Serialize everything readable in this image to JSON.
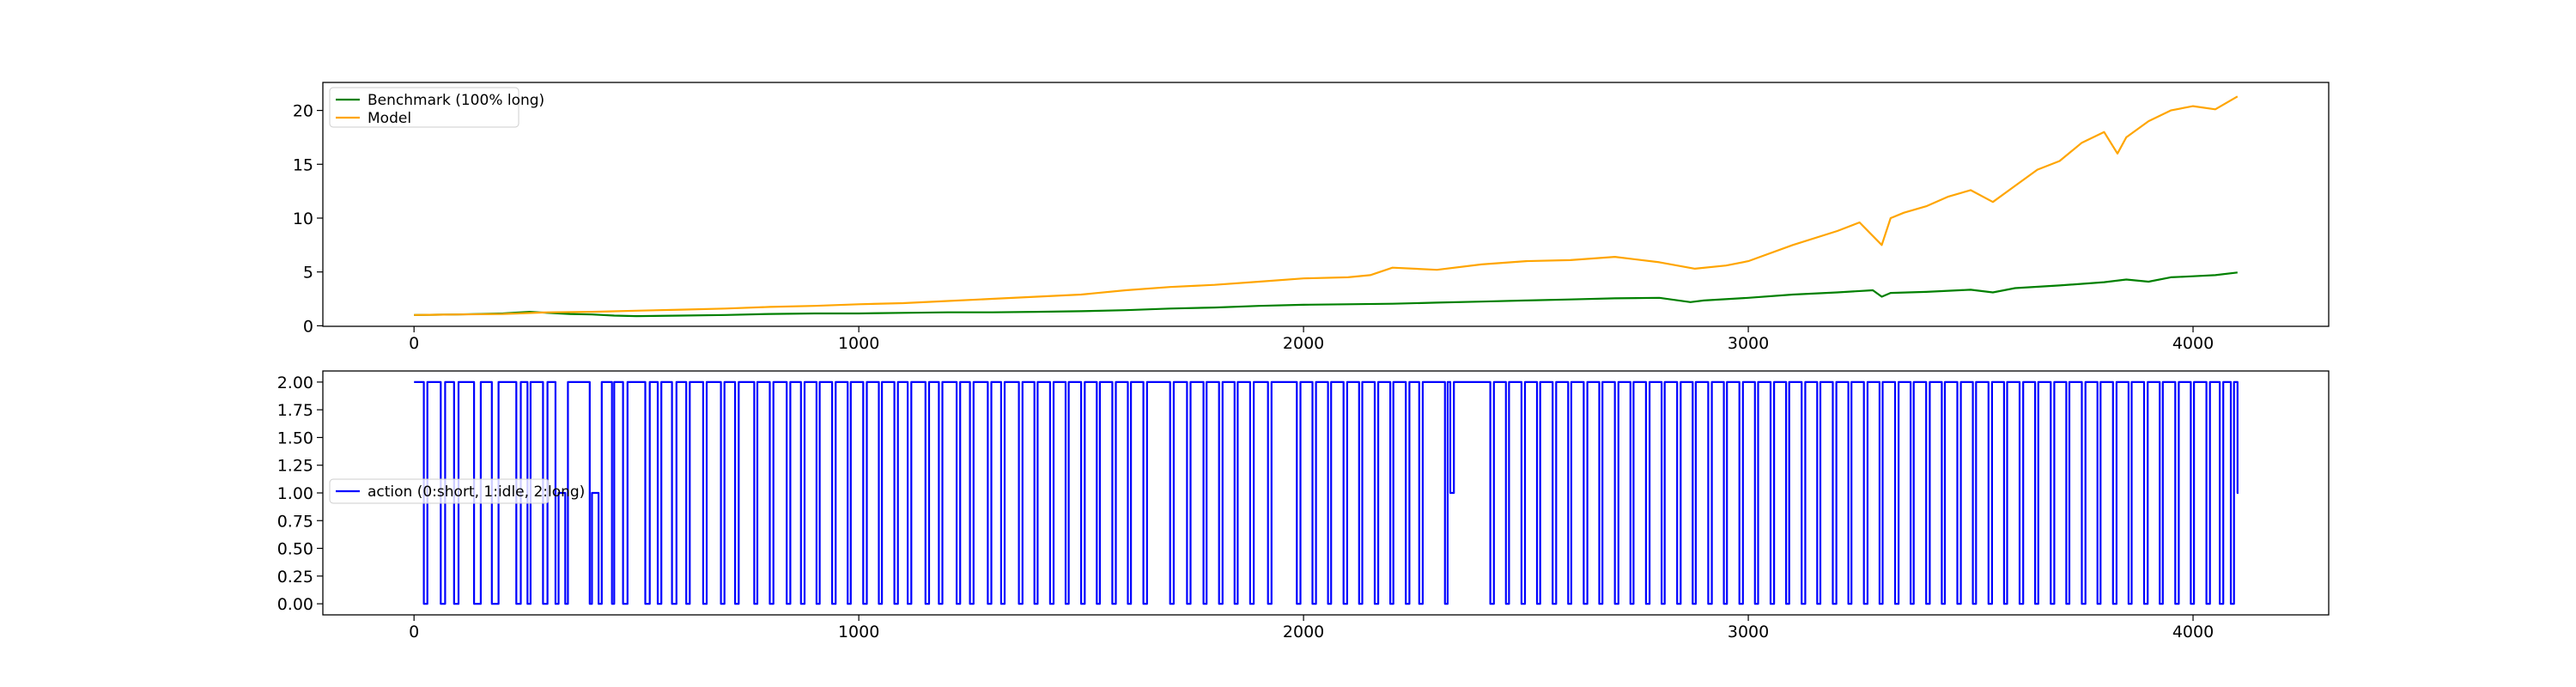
{
  "chart_data": [
    {
      "type": "line",
      "title": "",
      "xlabel": "",
      "ylabel": "",
      "xlim": [
        -205,
        4305
      ],
      "ylim": [
        -0.05,
        22.6
      ],
      "xticks": [
        0,
        1000,
        2000,
        3000,
        4000
      ],
      "xtick_labels": [
        "0",
        "1000",
        "2000",
        "3000",
        "4000"
      ],
      "yticks": [
        0,
        5,
        10,
        15,
        20
      ],
      "ytick_labels": [
        "0",
        "5",
        "10",
        "15",
        "20"
      ],
      "grid": false,
      "legend_position": "upper-left",
      "legend": [
        "Benchmark (100% long)",
        "Model"
      ],
      "series": [
        {
          "name": "Benchmark (100% long)",
          "color": "#008000",
          "x": [
            0,
            100,
            200,
            260,
            300,
            350,
            400,
            450,
            500,
            600,
            700,
            800,
            900,
            1000,
            1100,
            1200,
            1300,
            1400,
            1500,
            1600,
            1700,
            1800,
            1900,
            2000,
            2100,
            2200,
            2300,
            2400,
            2500,
            2600,
            2700,
            2800,
            2870,
            2900,
            3000,
            3100,
            3200,
            3280,
            3300,
            3320,
            3400,
            3500,
            3550,
            3600,
            3700,
            3800,
            3850,
            3900,
            3950,
            4000,
            4050,
            4100
          ],
          "y": [
            1.0,
            1.05,
            1.15,
            1.3,
            1.2,
            1.1,
            1.05,
            0.95,
            0.9,
            0.95,
            1.0,
            1.1,
            1.15,
            1.15,
            1.2,
            1.25,
            1.25,
            1.3,
            1.35,
            1.45,
            1.6,
            1.7,
            1.85,
            1.95,
            2.0,
            2.05,
            2.15,
            2.25,
            2.35,
            2.45,
            2.55,
            2.6,
            2.2,
            2.35,
            2.6,
            2.9,
            3.1,
            3.3,
            2.7,
            3.05,
            3.15,
            3.35,
            3.1,
            3.5,
            3.75,
            4.05,
            4.3,
            4.1,
            4.5,
            4.6,
            4.7,
            4.95
          ]
        },
        {
          "name": "Model",
          "color": "#FFA500",
          "x": [
            0,
            100,
            200,
            300,
            400,
            500,
            600,
            700,
            800,
            900,
            1000,
            1100,
            1200,
            1300,
            1400,
            1500,
            1600,
            1700,
            1800,
            1900,
            2000,
            2100,
            2150,
            2200,
            2300,
            2400,
            2500,
            2600,
            2700,
            2800,
            2880,
            2950,
            3000,
            3100,
            3200,
            3250,
            3300,
            3320,
            3350,
            3400,
            3450,
            3500,
            3550,
            3600,
            3650,
            3700,
            3750,
            3800,
            3830,
            3850,
            3900,
            3950,
            4000,
            4050,
            4100
          ],
          "y": [
            1.0,
            1.05,
            1.1,
            1.25,
            1.3,
            1.4,
            1.5,
            1.6,
            1.75,
            1.85,
            2.0,
            2.1,
            2.3,
            2.5,
            2.7,
            2.9,
            3.3,
            3.6,
            3.8,
            4.1,
            4.4,
            4.5,
            4.7,
            5.4,
            5.2,
            5.7,
            6.0,
            6.1,
            6.4,
            5.9,
            5.3,
            5.6,
            6.0,
            7.5,
            8.8,
            9.6,
            7.5,
            10.0,
            10.5,
            11.1,
            12.0,
            12.6,
            11.5,
            13.0,
            14.5,
            15.3,
            17.0,
            18.0,
            16.0,
            17.5,
            19.0,
            20.0,
            20.4,
            20.1,
            21.3
          ]
        }
      ]
    },
    {
      "type": "line",
      "title": "",
      "xlabel": "",
      "ylabel": "",
      "xlim": [
        -205,
        4305
      ],
      "ylim": [
        -0.1,
        2.1
      ],
      "xticks": [
        0,
        1000,
        2000,
        3000,
        4000
      ],
      "xtick_labels": [
        "0",
        "1000",
        "2000",
        "3000",
        "4000"
      ],
      "yticks": [
        0,
        0.25,
        0.5,
        0.75,
        1.0,
        1.25,
        1.5,
        1.75,
        2.0
      ],
      "ytick_labels": [
        "0.00",
        "0.25",
        "0.50",
        "0.75",
        "1.00",
        "1.25",
        "1.50",
        "1.75",
        "2.00"
      ],
      "grid": false,
      "legend_position": "center-left",
      "legend": [
        "action (0:short, 1:idle, 2:long)"
      ],
      "series": [
        {
          "name": "action (0:short, 1:idle, 2:long)",
          "color": "#0000FF",
          "step": true,
          "x": [
            0,
            22,
            30,
            60,
            70,
            90,
            100,
            135,
            150,
            175,
            190,
            230,
            240,
            255,
            262,
            290,
            300,
            318,
            325,
            340,
            346,
            395,
            400,
            415,
            422,
            445,
            450,
            470,
            480,
            520,
            530,
            548,
            556,
            580,
            590,
            612,
            620,
            650,
            658,
            690,
            698,
            722,
            730,
            765,
            772,
            800,
            808,
            838,
            846,
            870,
            878,
            905,
            912,
            940,
            948,
            975,
            982,
            1010,
            1018,
            1045,
            1052,
            1080,
            1088,
            1110,
            1118,
            1150,
            1158,
            1180,
            1188,
            1220,
            1228,
            1250,
            1258,
            1290,
            1298,
            1320,
            1328,
            1360,
            1368,
            1395,
            1402,
            1430,
            1438,
            1465,
            1472,
            1500,
            1508,
            1535,
            1542,
            1570,
            1578,
            1605,
            1612,
            1640,
            1648,
            1700,
            1708,
            1738,
            1746,
            1775,
            1782,
            1810,
            1818,
            1845,
            1852,
            1880,
            1888,
            1920,
            1928,
            1985,
            1993,
            2020,
            2028,
            2055,
            2062,
            2090,
            2098,
            2125,
            2132,
            2160,
            2168,
            2195,
            2202,
            2230,
            2238,
            2260,
            2268,
            2318,
            2324,
            2330,
            2338,
            2420,
            2428,
            2455,
            2462,
            2490,
            2498,
            2525,
            2532,
            2560,
            2568,
            2595,
            2602,
            2630,
            2638,
            2665,
            2672,
            2700,
            2708,
            2735,
            2742,
            2770,
            2778,
            2805,
            2812,
            2840,
            2848,
            2875,
            2882,
            2910,
            2918,
            2945,
            2952,
            2980,
            2988,
            3015,
            3022,
            3050,
            3058,
            3085,
            3092,
            3120,
            3128,
            3155,
            3162,
            3190,
            3198,
            3225,
            3232,
            3260,
            3268,
            3295,
            3302,
            3330,
            3338,
            3365,
            3372,
            3400,
            3408,
            3435,
            3442,
            3470,
            3478,
            3505,
            3512,
            3540,
            3548,
            3575,
            3582,
            3610,
            3618,
            3645,
            3652,
            3680,
            3688,
            3715,
            3722,
            3750,
            3758,
            3785,
            3792,
            3820,
            3828,
            3855,
            3862,
            3890,
            3898,
            3925,
            3932,
            3960,
            3968,
            3995,
            4002,
            4030,
            4038,
            4060,
            4068,
            4085,
            4092,
            4100
          ],
          "y": [
            2,
            0,
            2,
            0,
            2,
            0,
            2,
            0,
            2,
            0,
            2,
            0,
            2,
            0,
            2,
            0,
            2,
            0,
            1,
            0,
            2,
            0,
            1,
            0,
            2,
            0,
            2,
            0,
            2,
            0,
            2,
            0,
            2,
            0,
            2,
            0,
            2,
            0,
            2,
            0,
            2,
            0,
            2,
            0,
            2,
            0,
            2,
            0,
            2,
            0,
            2,
            0,
            2,
            0,
            2,
            0,
            2,
            0,
            2,
            0,
            2,
            0,
            2,
            0,
            2,
            0,
            2,
            0,
            2,
            0,
            2,
            0,
            2,
            0,
            2,
            0,
            2,
            0,
            2,
            0,
            2,
            0,
            2,
            0,
            2,
            0,
            2,
            0,
            2,
            0,
            2,
            0,
            2,
            0,
            2,
            0,
            2,
            0,
            2,
            0,
            2,
            0,
            2,
            0,
            2,
            0,
            2,
            0,
            2,
            0,
            2,
            0,
            2,
            0,
            2,
            0,
            2,
            0,
            2,
            0,
            2,
            0,
            2,
            0,
            2,
            0,
            2,
            0,
            2,
            1,
            2,
            0,
            2,
            0,
            2,
            0,
            2,
            0,
            2,
            0,
            2,
            0,
            2,
            0,
            2,
            0,
            2,
            0,
            2,
            0,
            2,
            0,
            2,
            0,
            2,
            0,
            2,
            0,
            2,
            0,
            2,
            0,
            2,
            0,
            2,
            0,
            2,
            0,
            2,
            0,
            2,
            0,
            2,
            0,
            2,
            0,
            2,
            0,
            2,
            0,
            2,
            0,
            2,
            0,
            2,
            0,
            2,
            0,
            2,
            0,
            2,
            0,
            2,
            0,
            2,
            0,
            2,
            0,
            2,
            0,
            2,
            0,
            2,
            0,
            2,
            0,
            2,
            0,
            2,
            0,
            2,
            0,
            2,
            0,
            2,
            0,
            2,
            0,
            2,
            0,
            2,
            0,
            2,
            0,
            2,
            0,
            2,
            0,
            2,
            1
          ]
        }
      ]
    }
  ]
}
